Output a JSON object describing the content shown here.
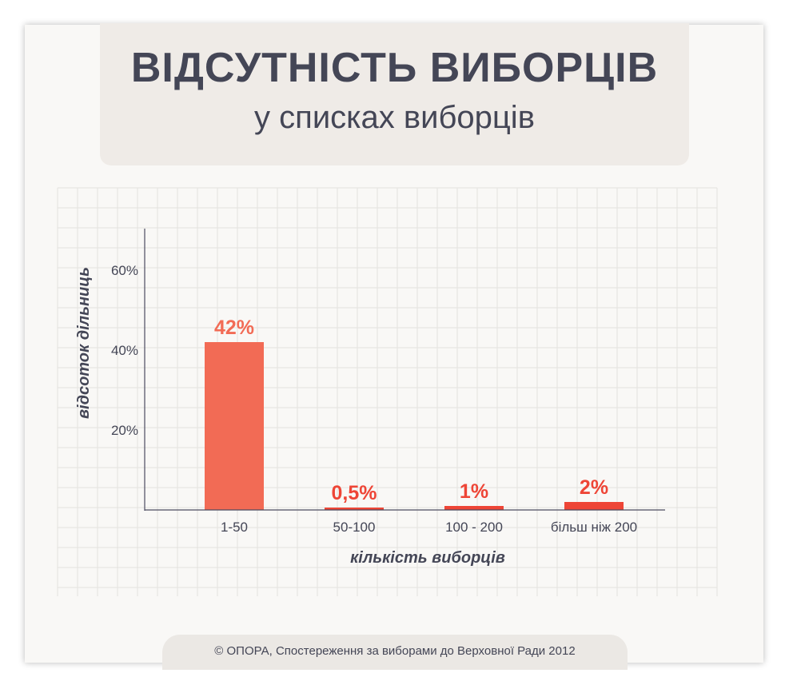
{
  "header": {
    "title": "ВІДСУТНІСТЬ ВИБОРЦІВ",
    "subtitle": "у списках виборців"
  },
  "footer": {
    "source": "© ОПОРА, Спостереження за виборами до Верховної Ради 2012"
  },
  "colors": {
    "bar": "#f26b55",
    "small_bar": "#ee4536",
    "axis": "#4c4b60",
    "grid": "#e4e2df",
    "text": "#444656",
    "background": "#f9f8f6"
  },
  "chart_data": {
    "type": "bar",
    "title": "ВІДСУТНІСТЬ ВИБОРЦІВ",
    "subtitle": "у списках виборців",
    "xlabel": "кількість виборців",
    "ylabel": "відсоток дільниць",
    "categories": [
      "1-50",
      "50-100",
      "100 - 200",
      "більш ніж 200"
    ],
    "values": [
      42,
      0.5,
      1,
      2
    ],
    "value_labels": [
      "42%",
      "0,5%",
      "1%",
      "2%"
    ],
    "yticks": [
      20,
      40,
      60
    ],
    "ytick_labels": [
      "20%",
      "40%",
      "60%"
    ],
    "ylim": [
      0,
      70
    ],
    "grid": true,
    "legend": "none"
  }
}
